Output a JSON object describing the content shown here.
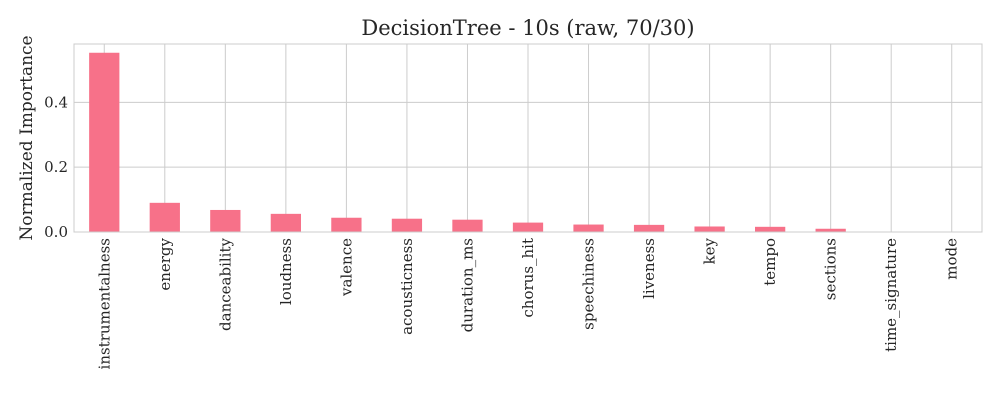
{
  "chart_data": {
    "type": "bar",
    "title": "DecisionTree - 10s (raw, 70/30)",
    "xlabel": "",
    "ylabel": "Normalized Importance",
    "categories": [
      "instrumentalness",
      "energy",
      "danceability",
      "loudness",
      "valence",
      "acousticness",
      "duration_ms",
      "chorus_hit",
      "speechiness",
      "liveness",
      "key",
      "tempo",
      "sections",
      "time_signature",
      "mode"
    ],
    "values": [
      0.553,
      0.09,
      0.068,
      0.056,
      0.044,
      0.041,
      0.038,
      0.029,
      0.023,
      0.022,
      0.017,
      0.016,
      0.01,
      0.0,
      0.0
    ],
    "ylim": [
      0,
      0.58
    ],
    "yticks": [
      0.0,
      0.2,
      0.4
    ],
    "ytick_labels": [
      "0.0",
      "0.2",
      "0.4"
    ],
    "bar_color": "#f77189",
    "grid": true,
    "legend": false
  }
}
